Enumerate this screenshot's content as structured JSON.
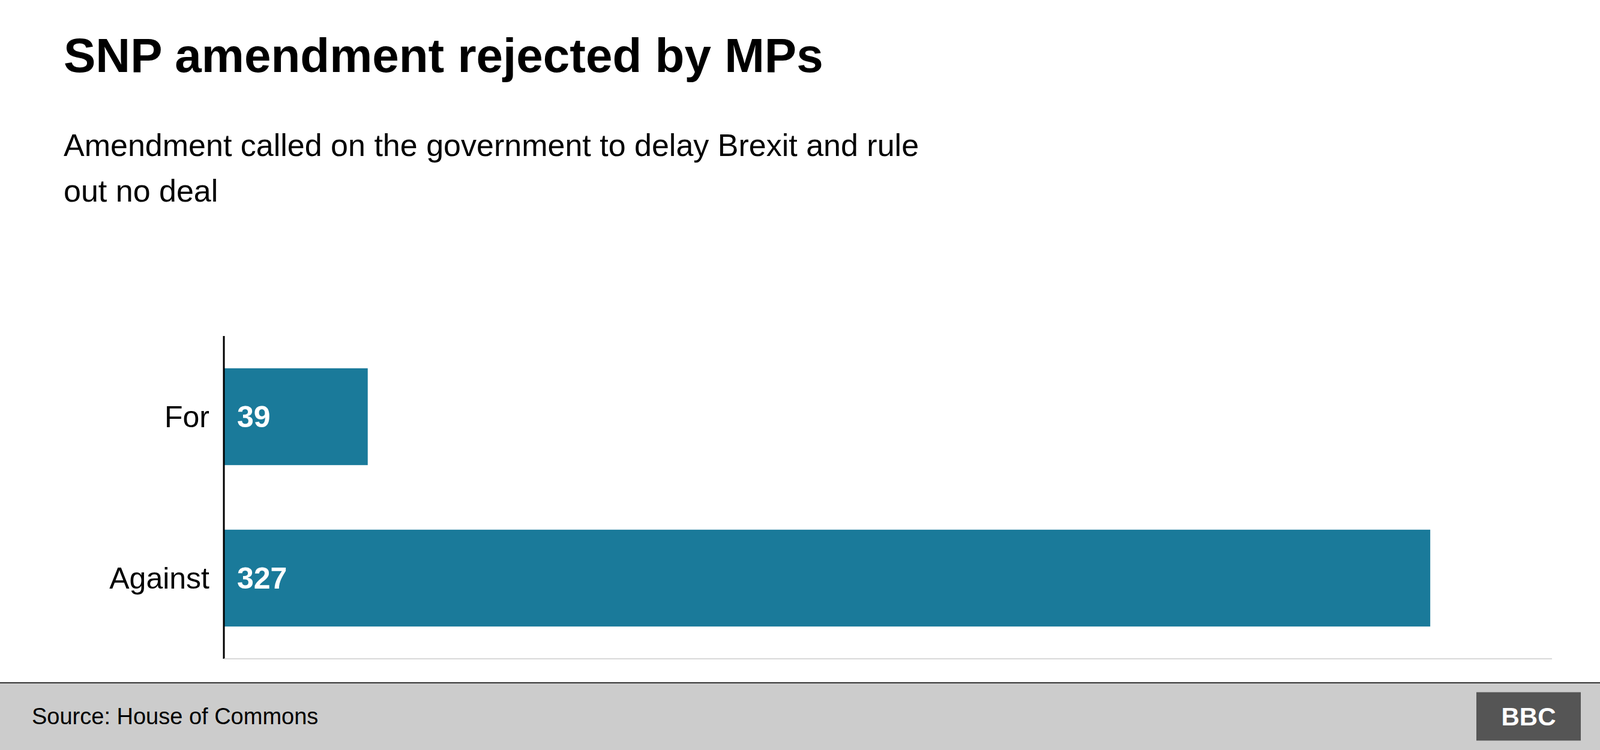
{
  "chart_data": {
    "type": "bar",
    "orientation": "horizontal",
    "title": "SNP amendment rejected by MPs",
    "subtitle": "Amendment called on the government to delay Brexit and rule\nout no deal",
    "categories": [
      "For",
      "Against"
    ],
    "values": [
      39,
      327
    ],
    "color": "#1a7a9a",
    "xlim": [
      0,
      360
    ],
    "data_labels": true,
    "tick_labels": "y",
    "annotations": [
      "Source: House of Commons",
      "BBC"
    ]
  }
}
